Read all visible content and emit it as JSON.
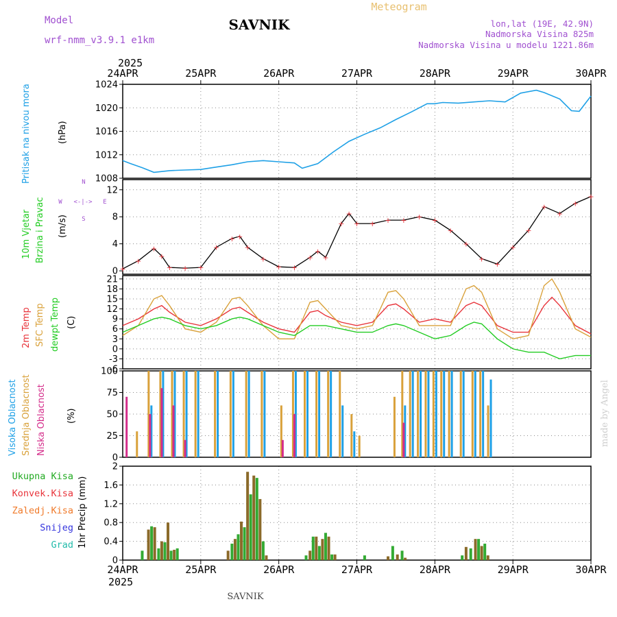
{
  "header": {
    "model_label": "Model",
    "model_name": "wrf-nmm_v3.9.1 e1km",
    "station": "SAVNIK",
    "product": "Meteogram",
    "coords": "lon,lat (19E, 42.9N)",
    "elevation": "Nadmorska Visina 825m",
    "model_elevation": "Nadmorska Visina u modelu 1221.86m",
    "footer_station": "SAVNIK",
    "credit": "made by Angel"
  },
  "time_axis": {
    "year": "2025",
    "labels": [
      "24APR",
      "25APR",
      "26APR",
      "27APR",
      "28APR",
      "29APR",
      "30APR"
    ]
  },
  "panels": {
    "pressure": {
      "label": "Pritisak na nivou mora",
      "unit": "(hPa)"
    },
    "wind": {
      "label1": "10m Vjetar",
      "label2": "Brzina i Pravac",
      "unit": "(m/s)",
      "compass": {
        "n": "N",
        "s": "S",
        "e": "E",
        "w": "W",
        "arrows": "<-|->"
      }
    },
    "temp": {
      "label_2m": "2m Temp",
      "label_sfc": "SFC Temp",
      "label_dew": "dewpt Temp",
      "unit": "(C)"
    },
    "cloud": {
      "label_high": "Visoka Oblacnost",
      "label_mid": "Srednja Oblacnost",
      "label_low": "Niska Oblacnost",
      "unit": "(%)"
    },
    "precip": {
      "label": "1hr Precip (mm)"
    }
  },
  "legend": {
    "items": [
      {
        "label": "Ukupna Kisa",
        "color": "#22aa22"
      },
      {
        "label": "Konvek.Kisa",
        "color": "#e8333a"
      },
      {
        "label": "Zaledj.Kisa",
        "color": "#f07a2a"
      },
      {
        "label": "Snijeg",
        "color": "#3333dd"
      },
      {
        "label": "Grad",
        "color": "#22bbaa"
      }
    ]
  },
  "colors": {
    "pressure": "#1ea0e6",
    "temp2m": "#e8333a",
    "sfc": "#d9a13a",
    "dew": "#22cc22",
    "high": "#1ea0e6",
    "mid": "#d9a13a",
    "low": "#d42c8a",
    "precip": "#8b6a2a",
    "precip_total": "#33aa33",
    "label_pressure": "#1ea0e6",
    "label_wind1": "#22cc22",
    "label_wind2": "#22cc22",
    "label_compass": "#a050d0"
  },
  "chart_data": [
    {
      "type": "line",
      "title": "",
      "ylabel": "Pritisak na nivou mora (hPa)",
      "x": [
        0,
        0.1,
        0.25,
        0.4,
        0.6,
        0.8,
        1.0,
        1.2,
        1.4,
        1.6,
        1.8,
        2.0,
        2.2,
        2.3,
        2.5,
        2.7,
        2.9,
        3.1,
        3.3,
        3.5,
        3.7,
        3.9,
        4.0,
        4.1,
        4.3,
        4.5,
        4.7,
        4.9,
        5.1,
        5.3,
        5.4,
        5.6,
        5.75,
        5.85,
        6.0
      ],
      "series": [
        {
          "name": "",
          "values": [
            1011,
            1010.5,
            1009.8,
            1009,
            1009.3,
            1009.4,
            1009.5,
            1009.9,
            1010.3,
            1010.8,
            1011,
            1010.8,
            1010.6,
            1009.7,
            1010.5,
            1012.5,
            1014.3,
            1015.5,
            1016.6,
            1018,
            1019.3,
            1020.7,
            1020.7,
            1020.9,
            1020.8,
            1021,
            1021.2,
            1021,
            1022.5,
            1023,
            1022.6,
            1021.5,
            1019.5,
            1019.4,
            1022
          ]
        }
      ],
      "xticks": [
        "24APR",
        "25APR",
        "26APR",
        "27APR",
        "28APR",
        "29APR",
        "30APR"
      ],
      "ylim": [
        1008,
        1024
      ],
      "yticks": [
        1008,
        1012,
        1016,
        1020,
        1024
      ],
      "grid": true
    },
    {
      "type": "line",
      "title": "",
      "ylabel": "10m Vjetar Brzina i Pravac (m/s)",
      "x": [
        0,
        0.2,
        0.4,
        0.5,
        0.6,
        0.8,
        1.0,
        1.2,
        1.4,
        1.5,
        1.6,
        1.8,
        2.0,
        2.2,
        2.4,
        2.5,
        2.6,
        2.8,
        2.9,
        3.0,
        3.2,
        3.4,
        3.6,
        3.8,
        4.0,
        4.2,
        4.4,
        4.6,
        4.8,
        5.0,
        5.2,
        5.4,
        5.6,
        5.8,
        6.0
      ],
      "series": [
        {
          "name": "",
          "values": [
            0.3,
            1.5,
            3.3,
            2.2,
            0.5,
            0.4,
            0.5,
            3.5,
            4.8,
            5.1,
            3.5,
            1.8,
            0.6,
            0.5,
            2,
            2.9,
            2,
            7,
            8.5,
            7,
            7,
            7.5,
            7.5,
            8,
            7.5,
            6,
            4,
            1.8,
            1,
            3.5,
            6,
            9.5,
            8.5,
            10,
            11
          ]
        }
      ],
      "xticks": [
        "24APR",
        "25APR",
        "26APR",
        "27APR",
        "28APR",
        "29APR",
        "30APR"
      ],
      "ylim": [
        -0.5,
        13.5
      ],
      "yticks": [
        0,
        4,
        8,
        12
      ],
      "grid": true
    },
    {
      "type": "line",
      "title": "",
      "ylabel": "Temp (C)",
      "x": [
        0,
        0.2,
        0.4,
        0.5,
        0.6,
        0.8,
        1.0,
        1.2,
        1.4,
        1.5,
        1.6,
        1.8,
        2.0,
        2.2,
        2.4,
        2.5,
        2.6,
        2.8,
        3.0,
        3.2,
        3.4,
        3.5,
        3.6,
        3.8,
        4.0,
        4.2,
        4.4,
        4.5,
        4.6,
        4.8,
        5.0,
        5.2,
        5.4,
        5.5,
        5.6,
        5.8,
        6.0
      ],
      "series": [
        {
          "name": "2m Temp",
          "values": [
            7,
            9,
            12,
            13,
            11,
            8,
            7,
            9,
            12,
            12.5,
            11,
            8,
            6,
            5,
            11,
            11.5,
            10,
            8,
            7,
            8,
            13,
            13.5,
            12,
            8,
            9,
            8,
            13,
            14,
            13,
            7,
            5,
            5,
            13,
            15.5,
            13,
            7,
            4.5
          ]
        },
        {
          "name": "SFC Temp",
          "values": [
            4,
            7,
            15,
            16,
            13,
            6,
            5,
            8,
            15,
            15.5,
            13,
            7,
            3,
            3,
            14,
            14.5,
            12,
            7,
            6,
            7,
            17,
            17.5,
            15,
            7,
            7,
            7,
            18,
            19,
            17,
            6,
            3,
            4,
            19,
            21,
            17,
            6,
            3.5
          ]
        },
        {
          "name": "dewpt Temp",
          "values": [
            5,
            7,
            9,
            9.5,
            9,
            7,
            6,
            7,
            9,
            9.5,
            9,
            7,
            5,
            4,
            7,
            7,
            7,
            6,
            5,
            5,
            7,
            7.5,
            7,
            5,
            3,
            4,
            7,
            8,
            7.5,
            3,
            0,
            -1,
            -1,
            -2,
            -3,
            -2,
            -2
          ]
        }
      ],
      "xticks": [
        "24APR",
        "25APR",
        "26APR",
        "27APR",
        "28APR",
        "29APR",
        "30APR"
      ],
      "ylim": [
        -6,
        22
      ],
      "yticks": [
        -6,
        -3,
        0,
        3,
        6,
        9,
        12,
        15,
        18,
        21
      ],
      "grid": true
    },
    {
      "type": "bar",
      "title": "",
      "ylabel": "Oblacnost (%)",
      "x": [
        0.05,
        0.2,
        0.35,
        0.5,
        0.65,
        0.8,
        0.95,
        1.2,
        1.4,
        1.6,
        1.8,
        2.05,
        2.2,
        2.35,
        2.5,
        2.65,
        2.8,
        2.95,
        3.05,
        3.5,
        3.6,
        3.7,
        3.8,
        3.9,
        4.0,
        4.1,
        4.2,
        4.35,
        4.5,
        4.6,
        4.7
      ],
      "series": [
        {
          "name": "Visoka Oblacnost",
          "values": [
            0,
            0,
            60,
            100,
            100,
            100,
            100,
            100,
            100,
            100,
            100,
            0,
            100,
            100,
            100,
            100,
            60,
            30,
            0,
            0,
            60,
            100,
            100,
            100,
            100,
            100,
            100,
            100,
            100,
            100,
            90
          ]
        },
        {
          "name": "Srednja Oblacnost",
          "values": [
            0,
            30,
            100,
            100,
            100,
            100,
            100,
            100,
            100,
            100,
            100,
            60,
            100,
            100,
            100,
            100,
            100,
            50,
            25,
            70,
            100,
            100,
            100,
            100,
            100,
            100,
            100,
            100,
            100,
            100,
            60
          ]
        },
        {
          "name": "Niska Oblacnost",
          "values": [
            70,
            0,
            50,
            80,
            60,
            20,
            0,
            0,
            0,
            0,
            0,
            20,
            50,
            0,
            0,
            0,
            0,
            0,
            0,
            0,
            40,
            0,
            0,
            0,
            0,
            0,
            0,
            0,
            0,
            0,
            0
          ]
        }
      ],
      "xticks": [
        "24APR",
        "25APR",
        "26APR",
        "27APR",
        "28APR",
        "29APR",
        "30APR"
      ],
      "ylim": [
        0,
        100
      ],
      "yticks": [
        0,
        25,
        50,
        75,
        100
      ],
      "grid": true
    },
    {
      "type": "bar",
      "title": "",
      "ylabel": "1hr Precip (mm)",
      "x": [
        0.25,
        0.33,
        0.37,
        0.41,
        0.46,
        0.5,
        0.54,
        0.58,
        0.62,
        0.66,
        0.7,
        1.35,
        1.4,
        1.44,
        1.48,
        1.52,
        1.56,
        1.6,
        1.64,
        1.68,
        1.72,
        1.76,
        1.8,
        1.84,
        2.35,
        2.4,
        2.44,
        2.48,
        2.52,
        2.56,
        2.6,
        2.64,
        2.68,
        2.72,
        3.1,
        3.4,
        3.46,
        3.52,
        3.58,
        3.62,
        4.35,
        4.4,
        4.46,
        4.52,
        4.56,
        4.6,
        4.64,
        4.68
      ],
      "series": [
        {
          "name": "",
          "values": [
            0.2,
            0.65,
            0.72,
            0.7,
            0.25,
            0.4,
            0.38,
            0.8,
            0.2,
            0.22,
            0.25,
            0.2,
            0.35,
            0.45,
            0.55,
            0.82,
            0.7,
            1.88,
            1.4,
            1.8,
            1.75,
            1.3,
            0.4,
            0.1,
            0.1,
            0.2,
            0.5,
            0.5,
            0.3,
            0.45,
            0.58,
            0.5,
            0.12,
            0.12,
            0.1,
            0.08,
            0.3,
            0.12,
            0.2,
            0.05,
            0.1,
            0.28,
            0.25,
            0.45,
            0.45,
            0.3,
            0.35,
            0.1
          ]
        }
      ],
      "xticks": [
        "24APR",
        "25APR",
        "26APR",
        "27APR",
        "28APR",
        "29APR",
        "30APR"
      ],
      "ylim": [
        0,
        2
      ],
      "yticks": [
        0,
        0.4,
        0.8,
        1.2,
        1.6,
        2
      ],
      "grid": true
    }
  ]
}
